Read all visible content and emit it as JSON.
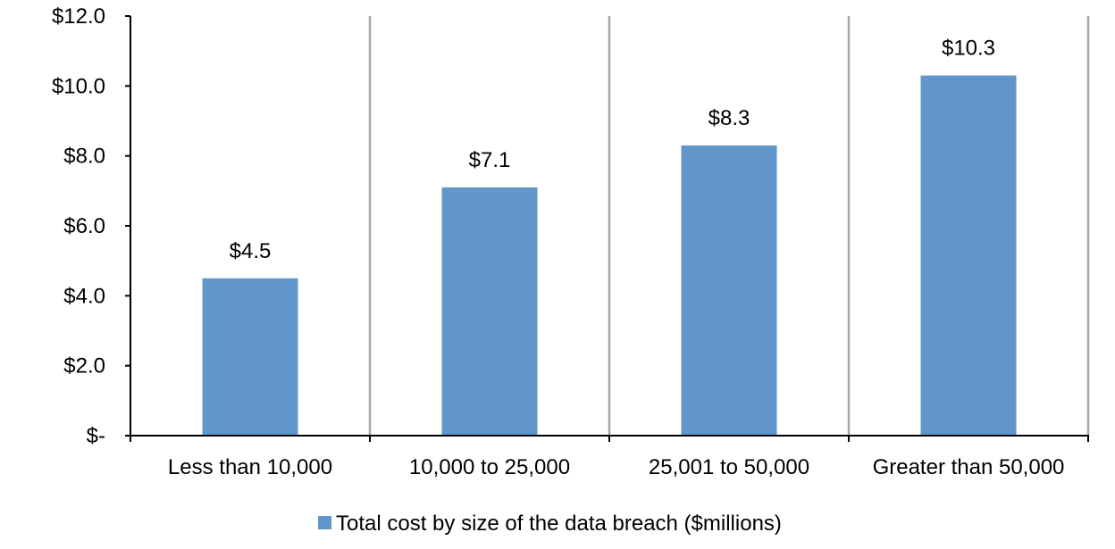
{
  "chart_data": {
    "type": "bar",
    "categories": [
      "Less than 10,000",
      "10,000 to 25,000",
      "25,001 to 50,000",
      "Greater than 50,000"
    ],
    "series": [
      {
        "name": "Total cost by size of the data breach ($millions)",
        "values": [
          4.5,
          7.1,
          8.3,
          10.3
        ],
        "data_labels": [
          "$4.5",
          "$7.1",
          "$8.3",
          "$10.3"
        ],
        "color": "#6096C9"
      }
    ],
    "y_ticks": [
      0,
      2,
      4,
      6,
      8,
      10,
      12
    ],
    "y_tick_labels": [
      "$-",
      "$2.0",
      "$4.0",
      "$6.0",
      "$8.0",
      "$10.0",
      "$12.0"
    ],
    "ylim": [
      0,
      12
    ],
    "grid": false,
    "category_separators": true,
    "separator_color": "#A6A6A6",
    "legend_position": "bottom"
  }
}
